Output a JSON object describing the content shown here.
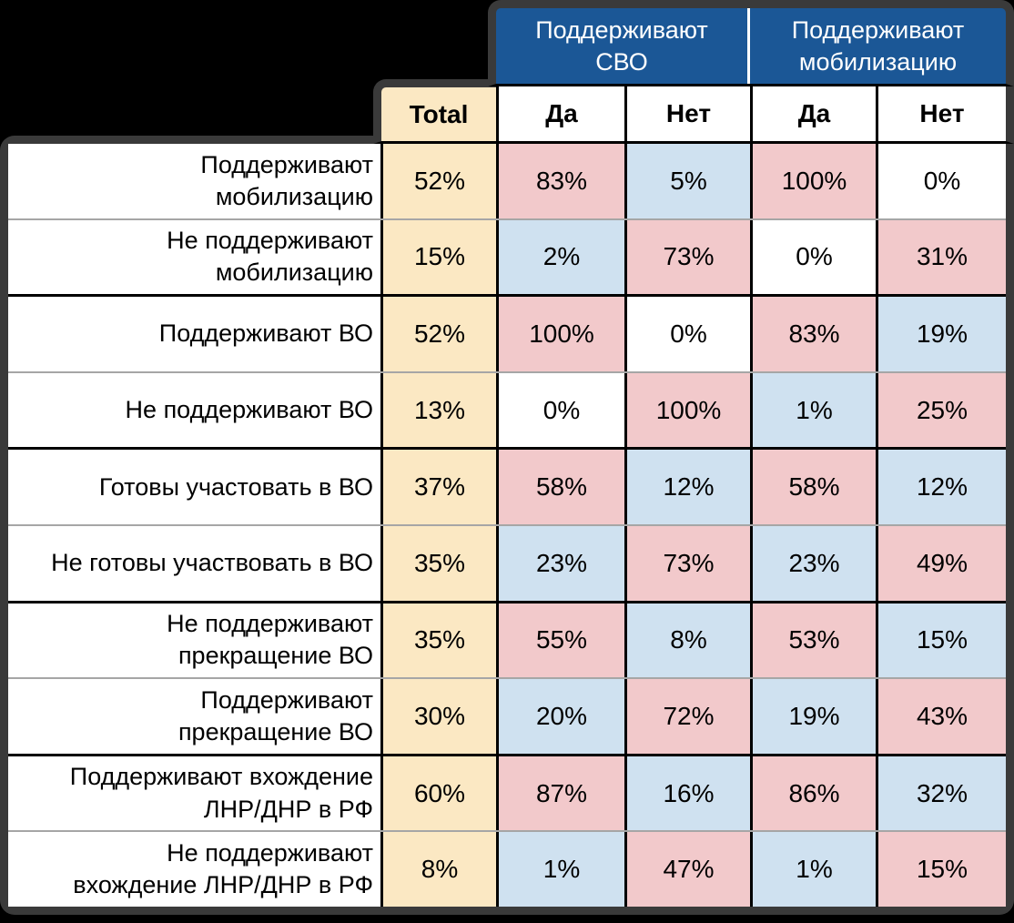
{
  "colors": {
    "pink": "#f2c9cb",
    "blue": "#cfe1f0",
    "white": "#ffffff",
    "total": "#fbe8c3",
    "header_blue": "#1b5796",
    "outer_border": "#3a3a3a",
    "grid_black": "#000000",
    "grid_gray": "#a6a6a6"
  },
  "header": {
    "group_svo": "Поддерживают\nСВО",
    "group_mobilization": "Поддерживают\nмобилизацию",
    "total_label": "Total",
    "sub_labels": [
      "Да",
      "Нет",
      "Да",
      "Нет"
    ]
  },
  "chart_data": {
    "type": "table",
    "column_groups": [
      "Поддерживают СВО",
      "Поддерживают мобилизацию"
    ],
    "columns": [
      "Total",
      "Да",
      "Нет",
      "Да",
      "Нет"
    ],
    "rows": [
      {
        "label": "Поддерживают\nмобилизацию",
        "total": "52%",
        "values": [
          "83%",
          "5%",
          "100%",
          "0%"
        ],
        "fills": [
          "pink",
          "blue",
          "pink",
          "white"
        ]
      },
      {
        "label": "Не поддерживают\nмобилизацию",
        "total": "15%",
        "values": [
          "2%",
          "73%",
          "0%",
          "31%"
        ],
        "fills": [
          "blue",
          "pink",
          "white",
          "pink"
        ]
      },
      {
        "label": "Поддерживают ВО",
        "total": "52%",
        "values": [
          "100%",
          "0%",
          "83%",
          "19%"
        ],
        "fills": [
          "pink",
          "white",
          "pink",
          "blue"
        ]
      },
      {
        "label": "Не поддерживают ВО",
        "total": "13%",
        "values": [
          "0%",
          "100%",
          "1%",
          "25%"
        ],
        "fills": [
          "white",
          "pink",
          "blue",
          "pink"
        ]
      },
      {
        "label": "Готовы участовать в ВО",
        "total": "37%",
        "values": [
          "58%",
          "12%",
          "58%",
          "12%"
        ],
        "fills": [
          "pink",
          "blue",
          "pink",
          "blue"
        ]
      },
      {
        "label": "Не готовы участвовать в ВО",
        "total": "35%",
        "values": [
          "23%",
          "73%",
          "23%",
          "49%"
        ],
        "fills": [
          "blue",
          "pink",
          "blue",
          "pink"
        ]
      },
      {
        "label": "Не поддерживают\nпрекращение ВО",
        "total": "35%",
        "values": [
          "55%",
          "8%",
          "53%",
          "15%"
        ],
        "fills": [
          "pink",
          "blue",
          "pink",
          "blue"
        ]
      },
      {
        "label": "Поддерживают\nпрекращение ВО",
        "total": "30%",
        "values": [
          "20%",
          "72%",
          "19%",
          "43%"
        ],
        "fills": [
          "blue",
          "pink",
          "blue",
          "pink"
        ]
      },
      {
        "label": "Поддерживают вхождение\nЛНР/ДНР в РФ",
        "total": "60%",
        "values": [
          "87%",
          "16%",
          "86%",
          "32%"
        ],
        "fills": [
          "pink",
          "blue",
          "pink",
          "blue"
        ]
      },
      {
        "label": "Не поддерживают\nвхождение ЛНР/ДНР в РФ",
        "total": "8%",
        "values": [
          "1%",
          "47%",
          "1%",
          "15%"
        ],
        "fills": [
          "blue",
          "pink",
          "blue",
          "pink"
        ]
      }
    ]
  }
}
